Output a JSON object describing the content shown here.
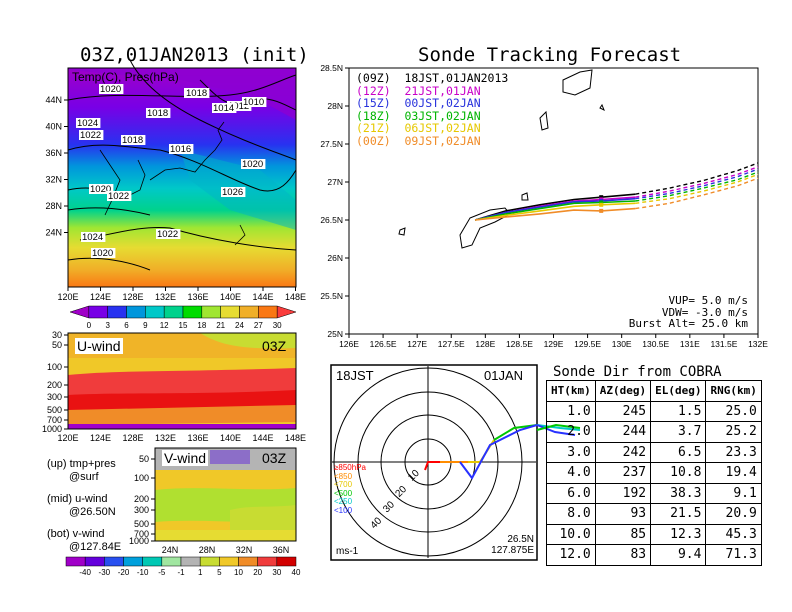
{
  "left_title": "03Z,01JAN2013 (init)",
  "map_overlay_label": "Temp(C), Pres(hPa)",
  "map_xticks": [
    "120E",
    "124E",
    "128E",
    "132E",
    "136E",
    "140E",
    "144E",
    "148E"
  ],
  "map_yticks": [
    "44N",
    "40N",
    "36N",
    "32N",
    "28N",
    "24N"
  ],
  "pressure_labels": [
    "1020",
    "1018",
    "1018",
    "1012",
    "1014",
    "1010",
    "1018",
    "1024",
    "1022",
    "1018",
    "1016",
    "1020",
    "1020",
    "1022",
    "1026",
    "1022",
    "1024",
    "1020"
  ],
  "temp_colorbar": {
    "labels": [
      "0",
      "3",
      "6",
      "9",
      "12",
      "15",
      "18",
      "21",
      "24",
      "27",
      "30"
    ],
    "colors": [
      "#a000c8",
      "#7800e6",
      "#2832f0",
      "#0096dc",
      "#00c8c8",
      "#00d28c",
      "#00dc00",
      "#a0e632",
      "#e6dc32",
      "#f0af28",
      "#fa7814",
      "#fa3c3c"
    ]
  },
  "uwind": {
    "label": "U-wind",
    "time": "03Z",
    "yticks": [
      "30",
      "50",
      "100",
      "200",
      "300",
      "500",
      "700",
      "1000"
    ],
    "xticks": [
      "120E",
      "124E",
      "128E",
      "132E",
      "136E",
      "140E",
      "144E",
      "148E"
    ]
  },
  "vwind": {
    "label": "V-wind",
    "time": "03Z",
    "yticks": [
      "50",
      "100",
      "200",
      "300",
      "500",
      "700",
      "1000"
    ],
    "xticks": [
      "24N",
      "28N",
      "32N",
      "36N"
    ]
  },
  "legend_notes": [
    {
      "a": "(up) tmp+pres",
      "b": "@surf"
    },
    {
      "a": "(mid) u-wind",
      "b": "@26.50N"
    },
    {
      "a": "(bot) v-wind",
      "b": "@127.84E"
    }
  ],
  "wind_colorbar": {
    "labels": [
      "-40",
      "-30",
      "-20",
      "-10",
      "-5",
      "-1",
      "1",
      "5",
      "10",
      "20",
      "30",
      "40"
    ],
    "colors": [
      "#a000c8",
      "#6400dc",
      "#2850f0",
      "#00a0dc",
      "#00c8b4",
      "#a0e6a0",
      "#b4b4b4",
      "#c8dc32",
      "#f0c828",
      "#f08c28",
      "#f03c3c",
      "#d20000"
    ]
  },
  "tracking": {
    "title": "Sonde Tracking Forecast",
    "xticks": [
      "126E",
      "126.5E",
      "127E",
      "127.5E",
      "128E",
      "128.5E",
      "129E",
      "129.5E",
      "130E",
      "130.5E",
      "131E",
      "131.5E",
      "132E"
    ],
    "yticks": [
      "28.5N",
      "28N",
      "27.5N",
      "27N",
      "26.5N",
      "26N",
      "25.5N",
      "25N"
    ],
    "legend": [
      {
        "text": "(09Z)  18JST,01JAN2013",
        "color": "#000000"
      },
      {
        "text": "(12Z)  21JST,01JAN",
        "color": "#c800c8"
      },
      {
        "text": "(15Z)  00JST,02JAN",
        "color": "#2832dc"
      },
      {
        "text": "(18Z)  03JST,02JAN",
        "color": "#00b400"
      },
      {
        "text": "(21Z)  06JST,02JAN",
        "color": "#e6c800"
      },
      {
        "text": "(00Z)  09JST,02JAN",
        "color": "#f08c28"
      }
    ],
    "params": [
      "VUP= 5.0 m/s",
      "VDW= -3.0 m/s",
      "Burst Alt= 25.0 km"
    ]
  },
  "chart_data": [
    {
      "type": "line",
      "title": "Sonde Tracking Forecast",
      "xlim": [
        126,
        132
      ],
      "ylim": [
        25,
        28.5
      ],
      "series": [
        {
          "name": "(09Z) 18JST,01JAN2013",
          "x": [
            127.85,
            128.3,
            128.8,
            129.3,
            129.7,
            130.2,
            130.7,
            131.2,
            131.7,
            132.0
          ],
          "y": [
            26.5,
            26.62,
            26.7,
            26.77,
            26.8,
            26.84,
            26.92,
            27.02,
            27.15,
            27.25
          ]
        },
        {
          "name": "(12Z) 21JST,01JAN",
          "x": [
            127.85,
            128.3,
            128.8,
            129.3,
            129.7,
            130.2,
            130.7,
            131.2,
            131.7,
            132.0
          ],
          "y": [
            26.5,
            26.6,
            26.68,
            26.75,
            26.77,
            26.8,
            26.88,
            26.98,
            27.1,
            27.2
          ]
        },
        {
          "name": "(15Z) 00JST,02JAN",
          "x": [
            127.85,
            128.3,
            128.8,
            129.3,
            129.7,
            130.2,
            130.7,
            131.2,
            131.7,
            132.0
          ],
          "y": [
            26.5,
            26.6,
            26.67,
            26.74,
            26.75,
            26.78,
            26.85,
            26.95,
            27.07,
            27.17
          ]
        },
        {
          "name": "(18Z) 03JST,02JAN",
          "x": [
            127.85,
            128.3,
            128.8,
            129.3,
            129.7,
            130.2,
            130.7,
            131.2,
            131.7,
            132.0
          ],
          "y": [
            26.5,
            26.58,
            26.65,
            26.72,
            26.73,
            26.75,
            26.82,
            26.92,
            27.03,
            27.13
          ]
        },
        {
          "name": "(21Z) 06JST,02JAN",
          "x": [
            127.85,
            128.3,
            128.8,
            129.3,
            129.7,
            130.2,
            130.7,
            131.2,
            131.7,
            132.0
          ],
          "y": [
            26.5,
            26.56,
            26.62,
            26.68,
            26.7,
            26.72,
            26.78,
            26.88,
            27.0,
            27.1
          ]
        },
        {
          "name": "(00Z) 09JST,02JAN",
          "x": [
            127.85,
            128.3,
            128.8,
            129.3,
            129.7,
            130.2,
            130.7,
            131.2,
            131.7,
            132.0
          ],
          "y": [
            26.5,
            26.54,
            26.58,
            26.63,
            26.62,
            26.65,
            26.72,
            26.83,
            26.95,
            27.05
          ]
        }
      ]
    },
    {
      "type": "table",
      "title": "Sonde Dir from COBRA",
      "columns": [
        "HT(km)",
        "AZ(deg)",
        "EL(deg)",
        "RNG(km)"
      ],
      "rows": [
        [
          "1.0",
          "245",
          "1.5",
          "25.0"
        ],
        [
          "2.0",
          "244",
          "3.7",
          "25.2"
        ],
        [
          "3.0",
          "242",
          "6.5",
          "23.3"
        ],
        [
          "4.0",
          "237",
          "10.8",
          "19.4"
        ],
        [
          "6.0",
          "192",
          "38.3",
          "9.1"
        ],
        [
          "8.0",
          "93",
          "21.5",
          "20.9"
        ],
        [
          "10.0",
          "85",
          "12.3",
          "45.3"
        ],
        [
          "12.0",
          "83",
          "9.4",
          "71.3"
        ]
      ]
    }
  ],
  "polar": {
    "time": "18JST",
    "date": "01JAN",
    "unit": "ms-1",
    "loc1": "26.5N",
    "loc2": "127.875E",
    "ring_labels": [
      "10",
      "20",
      "30",
      "40"
    ],
    "levels": [
      {
        "t": "≥850hPa",
        "c": "#ff0000"
      },
      {
        "t": "<850",
        "c": "#ff8c00"
      },
      {
        "t": "<700",
        "c": "#e6c800"
      },
      {
        "t": "<500",
        "c": "#00c800"
      },
      {
        "t": "<250",
        "c": "#00c8c8"
      },
      {
        "t": "<100",
        "c": "#2832ff"
      }
    ]
  }
}
